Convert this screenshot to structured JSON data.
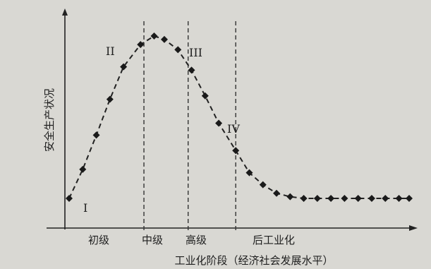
{
  "chart_data": {
    "type": "line",
    "ylabel": "安全生产状况",
    "xlabel": "工业化阶段（经济社会发展水平）",
    "stages": [
      "初级",
      "中级",
      "高级",
      "后工业化"
    ],
    "zone_labels": [
      "I",
      "II",
      "III",
      "IV"
    ],
    "grid": false,
    "x": [
      0,
      0.04,
      0.08,
      0.12,
      0.16,
      0.21,
      0.25,
      0.28,
      0.32,
      0.36,
      0.4,
      0.44,
      0.49,
      0.53,
      0.57,
      0.61,
      0.65,
      0.69,
      0.73,
      0.77,
      0.81,
      0.85,
      0.89,
      0.93,
      0.97,
      1.0
    ],
    "y": [
      0.05,
      0.22,
      0.42,
      0.63,
      0.82,
      0.95,
      1.0,
      0.98,
      0.92,
      0.8,
      0.65,
      0.49,
      0.33,
      0.2,
      0.13,
      0.08,
      0.06,
      0.05,
      0.05,
      0.05,
      0.05,
      0.05,
      0.05,
      0.05,
      0.05,
      0.05
    ],
    "xlim": [
      0,
      1
    ],
    "ylim": [
      0,
      1.1
    ],
    "stage_boundaries": [
      0.22,
      0.35,
      0.49
    ]
  }
}
